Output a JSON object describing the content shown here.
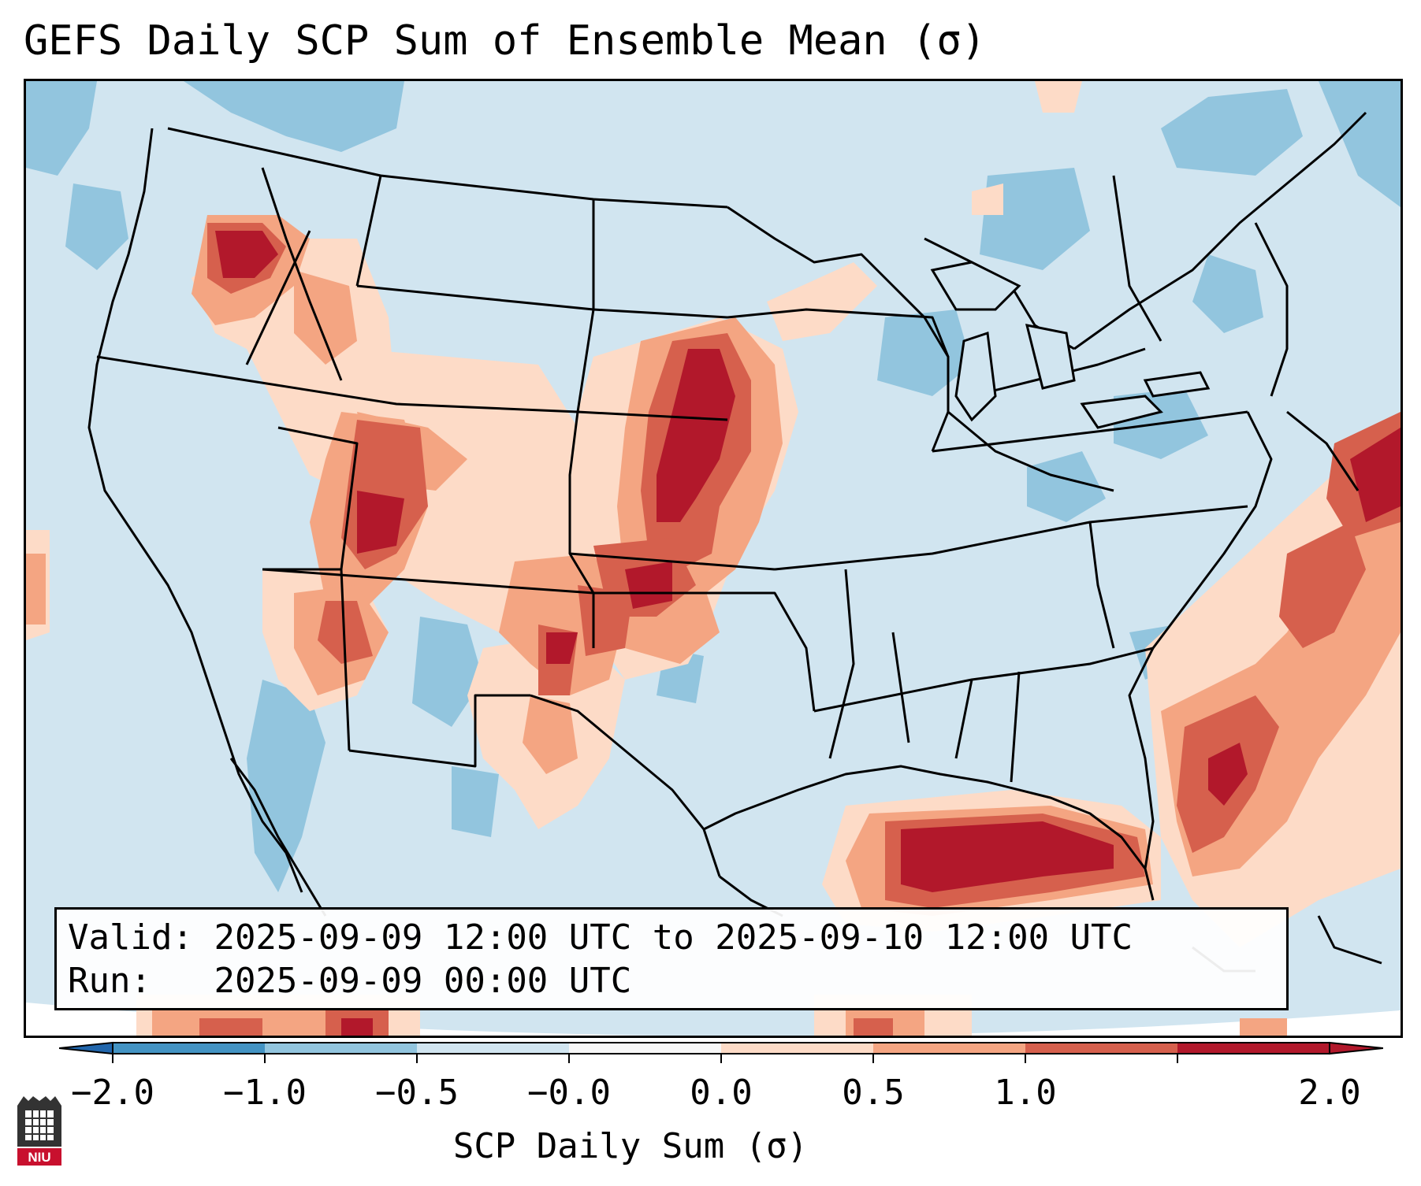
{
  "title": "GEFS Daily SCP Sum of Ensemble Mean (σ)",
  "info": {
    "valid_label": "Valid:",
    "valid_value": "2025-09-09 12:00 UTC to 2025-09-10 12:00 UTC",
    "run_label": "Run:  ",
    "run_value": "2025-09-09 00:00 UTC"
  },
  "colorbar": {
    "label": "SCP Daily Sum (σ)",
    "ticks": [
      "−2.0",
      "−1.0",
      "−0.5",
      "−0.0",
      "0.0",
      "0.5",
      "1.0",
      "2.0"
    ],
    "colors": [
      "#4393c3",
      "#92c5de",
      "#d1e5f0",
      "#f7f7f7",
      "#fddbc7",
      "#f4a582",
      "#d6604d",
      "#b2182b"
    ],
    "extend_low_color": "#2166ac",
    "extend_high_color": "#b2182b"
  },
  "regions": {
    "high_scp": [
      "Central Plains (Nebraska / Kansas)",
      "Gulf of Mexico",
      "Western Atlantic",
      "Oregon"
    ],
    "low_scp": [
      "Northeast",
      "Great Lakes",
      "Gulf of California"
    ]
  },
  "logo": {
    "text": "NIU",
    "color": "#c8102e"
  }
}
